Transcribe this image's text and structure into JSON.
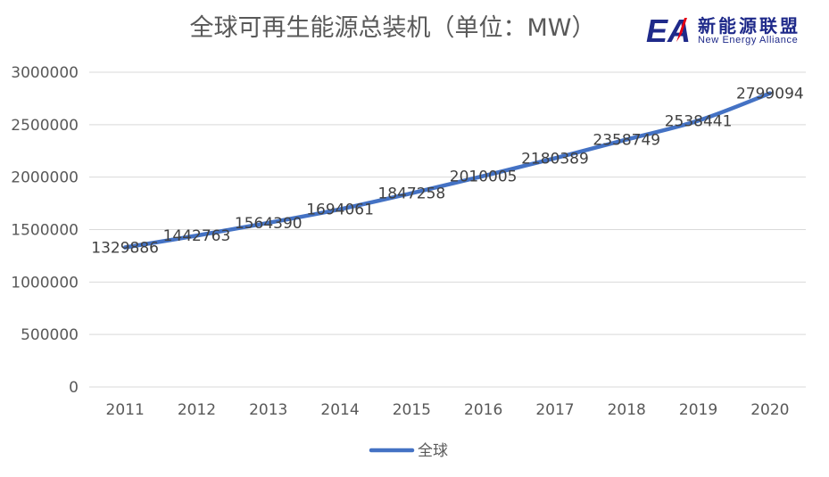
{
  "chart_data": {
    "type": "line",
    "title": "全球可再生能源总装机（单位：MW）",
    "categories": [
      "2011",
      "2012",
      "2013",
      "2014",
      "2015",
      "2016",
      "2017",
      "2018",
      "2019",
      "2020"
    ],
    "series": [
      {
        "name": "全球",
        "values": [
          1329886,
          1442763,
          1564390,
          1694061,
          1847258,
          2010005,
          2180389,
          2358749,
          2538441,
          2799094
        ]
      }
    ],
    "yticks": [
      "0",
      "500000",
      "1000000",
      "1500000",
      "2000000",
      "2500000",
      "3000000"
    ],
    "ylim": [
      0,
      3000000
    ],
    "grid": true,
    "legend": "bottom",
    "colors": {
      "series": "#4472c4",
      "grid": "#d9d9d9",
      "text": "#595959"
    }
  },
  "logo": {
    "mark_text": "EA",
    "name_cn": "新能源联盟",
    "name_en": "New Energy  Alliance",
    "colors": {
      "mark": "#1f2a8a",
      "accent": "#e60012"
    }
  }
}
